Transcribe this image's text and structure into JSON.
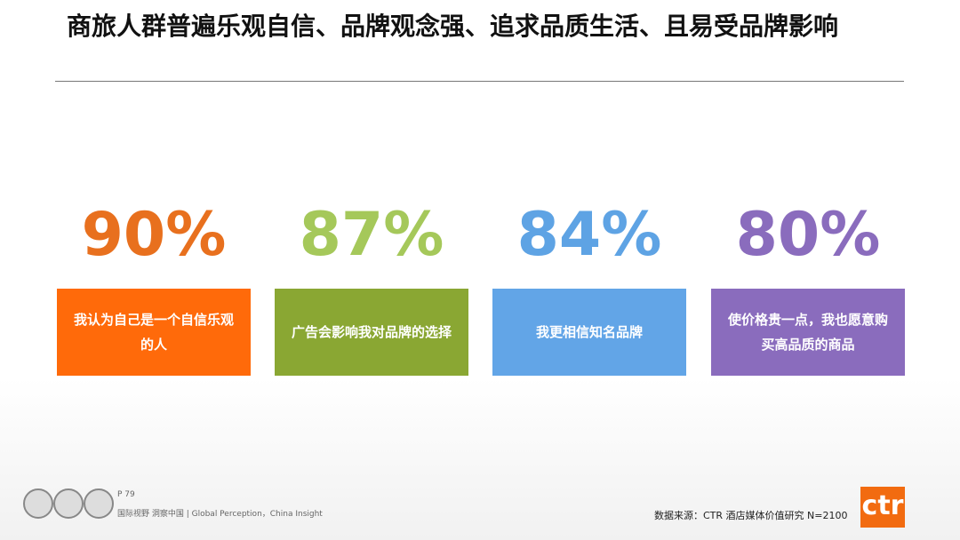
{
  "title": "商旅人群普遍乐观自信、品牌观念强、追求品质生活、且易受品牌影响",
  "stats": [
    {
      "figure": "90%",
      "caption": "我认为自己是一个自信乐观的人",
      "figure_color": "#e8701e",
      "box_color": "#ff6a0a"
    },
    {
      "figure": "87%",
      "caption": "广告会影响我对品牌的选择",
      "figure_color": "#a5c85a",
      "box_color": "#8aa733"
    },
    {
      "figure": "84%",
      "caption": "我更相信知名品牌",
      "figure_color": "#5ea3e4",
      "box_color": "#62a5e7"
    },
    {
      "figure": "80%",
      "caption": "使价格贵一点，我也愿意购买高品质的商品",
      "figure_color": "#8a6cbd",
      "box_color": "#8a6cbd"
    }
  ],
  "footer": {
    "page": "P 79",
    "slogan": "国际视野 洞察中国 | Global Perception，China Insight",
    "source": "数据来源：CTR  酒店媒体价值研究   N=2100",
    "logo": "ctr"
  }
}
